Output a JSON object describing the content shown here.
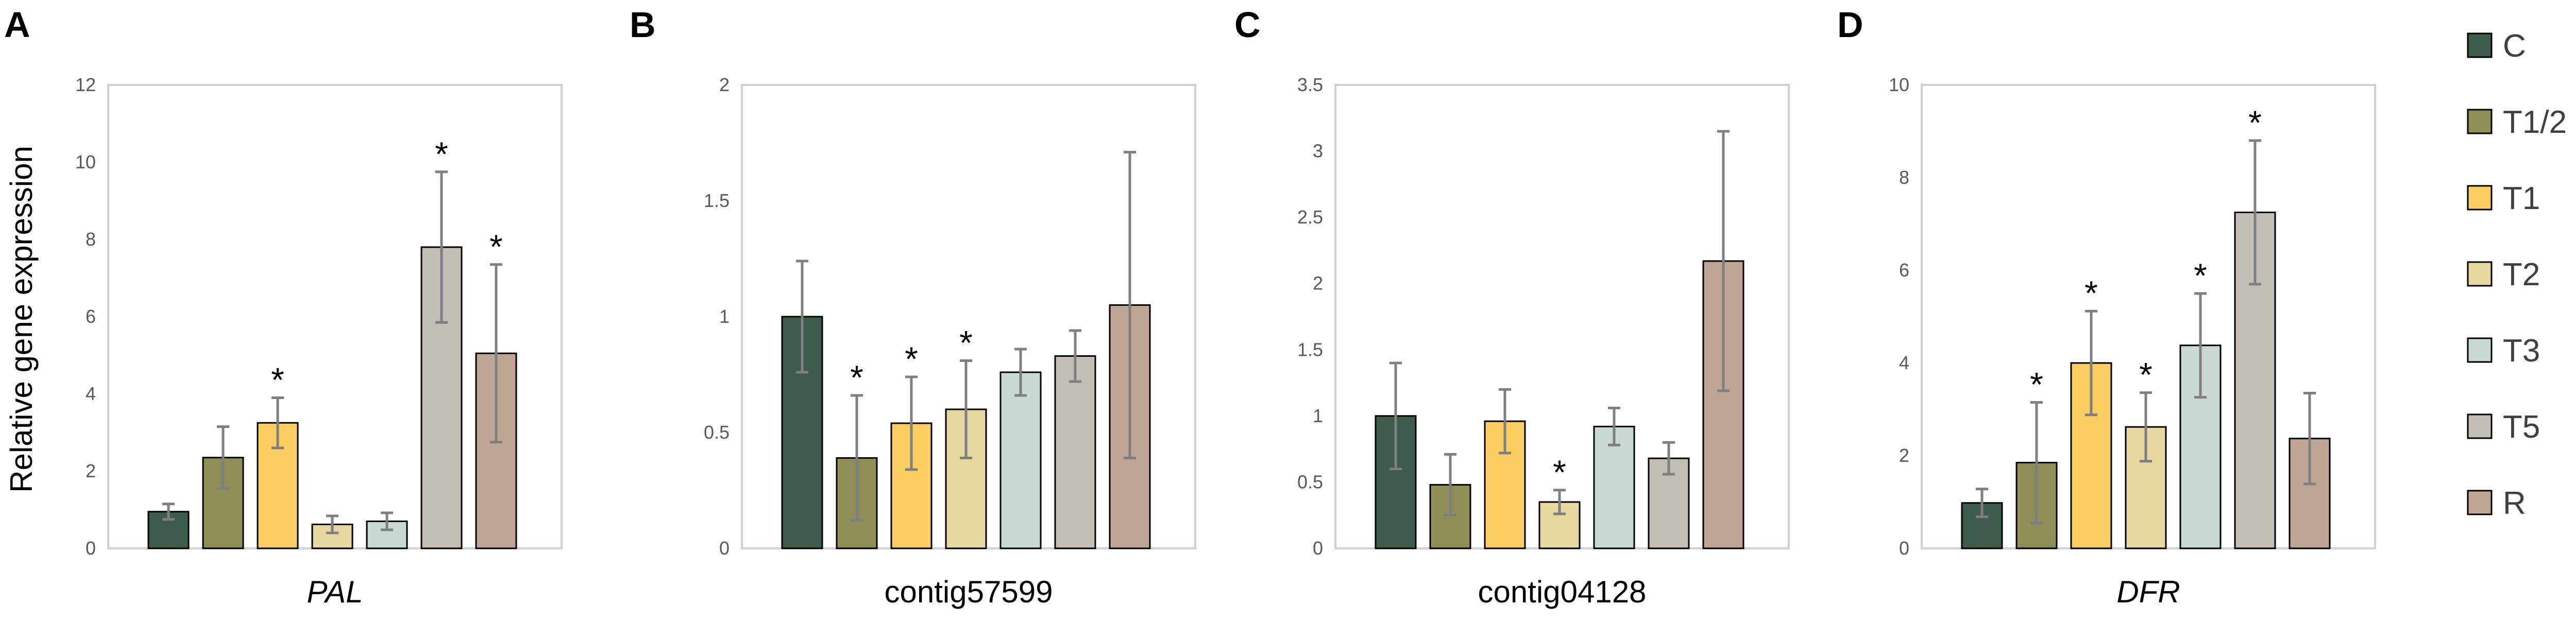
{
  "legend": [
    {
      "label": "C",
      "color": "#3d5c4c"
    },
    {
      "label": "T1/2",
      "color": "#8f8e57"
    },
    {
      "label": "T1",
      "color": "#fccd63"
    },
    {
      "label": "T2",
      "color": "#e6d6a0"
    },
    {
      "label": "T3",
      "color": "#c8d8d3"
    },
    {
      "label": "T5",
      "color": "#c2bdb5"
    },
    {
      "label": "R",
      "color": "#bfa593"
    }
  ],
  "chart_data": [
    {
      "type": "bar",
      "panel": "A",
      "title": "",
      "xlabel": "PAL",
      "xlabel_italic": true,
      "ylabel": "Relative gene expression",
      "ylim": [
        0,
        12
      ],
      "yticks": [
        "0",
        "2",
        "4",
        "6",
        "8",
        "10",
        "12"
      ],
      "categories": [
        "C",
        "T1/2",
        "T1",
        "T2",
        "T3",
        "T5",
        "R"
      ],
      "values": [
        0.95,
        2.35,
        3.25,
        0.62,
        0.7,
        7.8,
        5.05
      ],
      "errors": [
        0.2,
        0.8,
        0.65,
        0.22,
        0.22,
        1.95,
        2.3
      ],
      "significant": [
        false,
        false,
        true,
        false,
        false,
        true,
        true
      ],
      "annotation": "*"
    },
    {
      "type": "bar",
      "panel": "B",
      "title": "",
      "xlabel": "contig57599",
      "xlabel_italic": false,
      "ylabel": "",
      "ylim": [
        0,
        2
      ],
      "yticks": [
        "0",
        "0.5",
        "1",
        "1.5",
        "2"
      ],
      "categories": [
        "C",
        "T1/2",
        "T1",
        "T2",
        "T3",
        "T5",
        "R"
      ],
      "values": [
        1.0,
        0.39,
        0.54,
        0.6,
        0.76,
        0.83,
        1.05
      ],
      "errors": [
        0.24,
        0.27,
        0.2,
        0.21,
        0.1,
        0.11,
        0.66
      ],
      "significant": [
        false,
        true,
        true,
        true,
        false,
        false,
        false
      ],
      "annotation": "*"
    },
    {
      "type": "bar",
      "panel": "C",
      "title": "",
      "xlabel": "contig04128",
      "xlabel_italic": false,
      "ylabel": "",
      "ylim": [
        0,
        3.5
      ],
      "yticks": [
        "0",
        "0.5",
        "1",
        "1.5",
        "2",
        "2.5",
        "3",
        "3.5"
      ],
      "categories": [
        "C",
        "T1/2",
        "T1",
        "T2",
        "T3",
        "T5",
        "R"
      ],
      "values": [
        1.0,
        0.48,
        0.96,
        0.35,
        0.92,
        0.68,
        2.17
      ],
      "errors": [
        0.4,
        0.23,
        0.24,
        0.09,
        0.14,
        0.12,
        0.98
      ],
      "significant": [
        false,
        false,
        false,
        true,
        false,
        false,
        false
      ],
      "annotation": "*"
    },
    {
      "type": "bar",
      "panel": "D",
      "title": "",
      "xlabel": "DFR",
      "xlabel_italic": true,
      "ylabel": "",
      "ylim": [
        0,
        10
      ],
      "yticks": [
        "0",
        "2",
        "4",
        "6",
        "8",
        "10"
      ],
      "categories": [
        "C",
        "T1/2",
        "T1",
        "T2",
        "T3",
        "T5",
        "R"
      ],
      "values": [
        0.98,
        1.85,
        4.0,
        2.62,
        4.38,
        7.25,
        2.37
      ],
      "errors": [
        0.3,
        1.3,
        1.12,
        0.74,
        1.12,
        1.55,
        0.98
      ],
      "significant": [
        false,
        true,
        true,
        true,
        true,
        true,
        false
      ],
      "annotation": "*"
    }
  ]
}
